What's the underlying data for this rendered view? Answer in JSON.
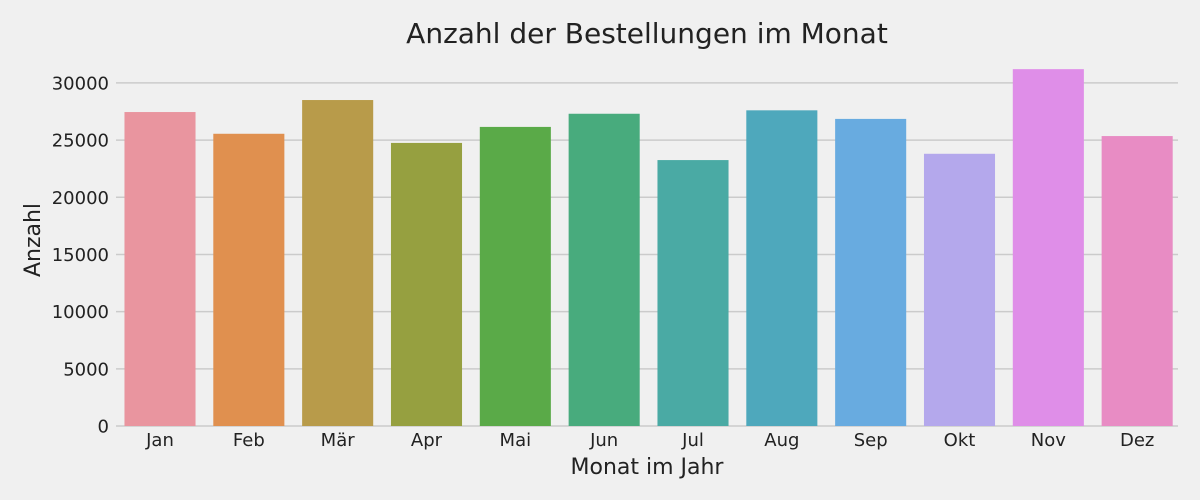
{
  "chart_data": {
    "type": "bar",
    "title": "Anzahl der Bestellungen im Monat",
    "xlabel": "Monat im Jahr",
    "ylabel": "Anzahl",
    "categories": [
      "Jan",
      "Feb",
      "Mär",
      "Apr",
      "Mai",
      "Jun",
      "Jul",
      "Aug",
      "Sep",
      "Okt",
      "Nov",
      "Dez"
    ],
    "values": [
      27450,
      25550,
      28500,
      24750,
      26150,
      27300,
      23250,
      27600,
      26850,
      23800,
      31200,
      25350
    ],
    "colors": [
      "#e9959f",
      "#e0904f",
      "#b89b4a",
      "#96a040",
      "#5aaa48",
      "#48ab7d",
      "#4aaaa4",
      "#4ea8bc",
      "#68abe0",
      "#b4a8ec",
      "#df8ee8",
      "#e88cc4"
    ],
    "ylim": [
      0,
      32000
    ],
    "yticks": [
      0,
      5000,
      10000,
      15000,
      20000,
      25000,
      30000
    ],
    "grid": true,
    "background": "#f0f0f0"
  }
}
